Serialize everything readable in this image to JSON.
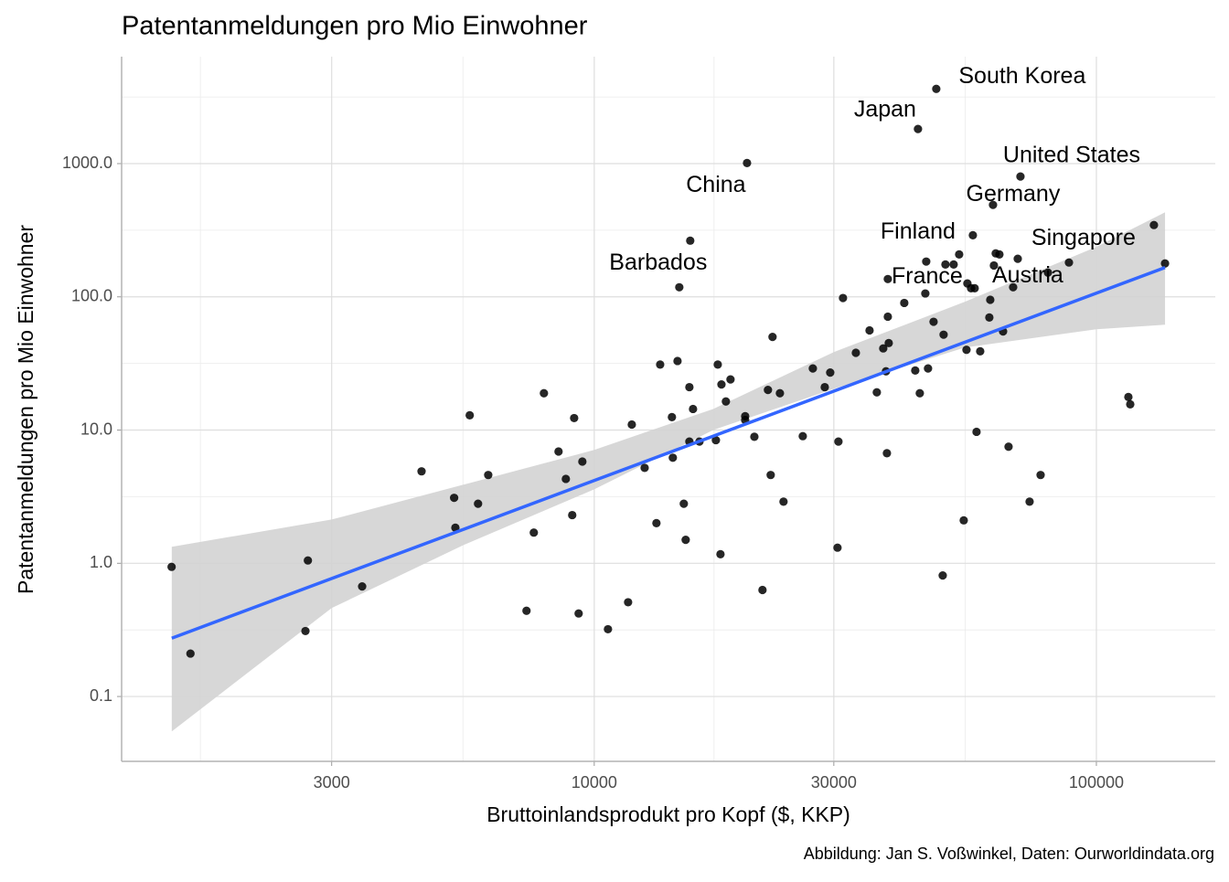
{
  "chart_data": {
    "type": "scatter",
    "title": "Patentanmeldungen pro Mio Einwohner",
    "x_label": "Bruttoinlandsprodukt pro Kopf ($, KKP)",
    "y_label": "Patentanmeldungen pro Mio Einwohner",
    "caption": "Abbildung: Jan S. Voßwinkel, Daten: Ourworldindata.org",
    "xscale": "log",
    "yscale": "log",
    "xlim": [
      1145,
      172500
    ],
    "ylim": [
      0.0326,
      6350
    ],
    "xticks": [
      3000,
      10000,
      30000,
      100000
    ],
    "yticks": [
      0.1,
      {
        "value": 1,
        "label": "1.0"
      },
      {
        "value": 10,
        "label": "10.0"
      },
      {
        "value": 100,
        "label": "100.0"
      },
      {
        "value": 1000,
        "label": "1000.0"
      }
    ],
    "grid": true,
    "color": "#000000",
    "x": [
      1440,
      1570,
      2660,
      2690,
      3450,
      4530,
      5260,
      5290,
      5650,
      5870,
      6150,
      7330,
      7580,
      7940,
      8490,
      8780,
      9040,
      9120,
      9310,
      9470,
      10650,
      11680,
      11880,
      12600,
      13300,
      13530,
      14280,
      14340,
      14650,
      14770,
      15080,
      15210,
      15470,
      15470,
      15530,
      15730,
      16200,
      17470,
      17620,
      17840,
      17920,
      18290,
      18680,
      19980,
      19980,
      20150,
      20840,
      21630,
      22180,
      22460,
      22650,
      23430,
      23820,
      26020,
      27250,
      28780,
      29510,
      30510,
      30640,
      31290,
      33190,
      35340,
      36540,
      37630,
      38110,
      38270,
      38430,
      38430,
      38590,
      41440,
      43580,
      44130,
      44500,
      45640,
      45830,
      46210,
      47400,
      47990,
      49430,
      49630,
      50050,
      51970,
      53300,
      54430,
      55120,
      55350,
      56290,
      56760,
      57230,
      57720,
      58700,
      61210,
      61470,
      62250,
      62510,
      63030,
      64100,
      65190,
      66850,
      68270,
      69730,
      70600,
      73620,
      77430,
      80080,
      88180,
      115800,
      116800,
      130200,
      137000
    ],
    "y": [
      0.94,
      0.21,
      0.31,
      1.05,
      0.67,
      4.9,
      3.1,
      1.85,
      12.9,
      2.8,
      4.6,
      0.44,
      1.7,
      18.9,
      6.9,
      4.3,
      2.3,
      12.3,
      0.42,
      5.8,
      0.32,
      0.51,
      11,
      5.2,
      2.0,
      31,
      12.5,
      6.2,
      33,
      118,
      2.8,
      1.5,
      8.2,
      21,
      264,
      14.4,
      8.2,
      8.4,
      31,
      1.17,
      22,
      16.4,
      24,
      11.9,
      12.7,
      1010,
      8.9,
      0.63,
      20,
      4.6,
      50,
      18.9,
      2.9,
      9.0,
      29,
      21,
      27,
      1.31,
      8.2,
      98,
      38,
      56,
      19.2,
      41,
      27.6,
      6.7,
      136,
      71,
      45,
      90,
      28,
      1820,
      18.9,
      106,
      184,
      29,
      65,
      3640,
      0.81,
      52,
      175,
      175,
      208,
      2.1,
      40,
      126,
      116,
      290,
      116,
      9.7,
      39,
      70,
      95,
      490,
      172,
      212,
      208,
      55,
      7.5,
      118,
      193,
      800,
      2.9,
      4.6,
      152,
      181,
      17.7,
      15.6,
      346,
      178
    ],
    "labels": [
      null,
      null,
      null,
      null,
      null,
      null,
      null,
      null,
      null,
      null,
      null,
      null,
      null,
      null,
      null,
      null,
      null,
      null,
      null,
      null,
      null,
      null,
      null,
      null,
      null,
      null,
      null,
      null,
      null,
      null,
      null,
      null,
      null,
      null,
      "Barbados",
      null,
      null,
      null,
      null,
      null,
      null,
      null,
      null,
      null,
      null,
      "China",
      null,
      null,
      null,
      null,
      null,
      null,
      null,
      null,
      null,
      null,
      null,
      null,
      null,
      null,
      null,
      null,
      null,
      null,
      null,
      null,
      null,
      null,
      null,
      null,
      null,
      "Japan",
      null,
      null,
      "France",
      null,
      null,
      "South Korea",
      null,
      null,
      null,
      null,
      null,
      null,
      null,
      null,
      null,
      "Finland",
      null,
      null,
      null,
      null,
      null,
      "Germany",
      null,
      "Austria",
      null,
      null,
      null,
      null,
      null,
      "United States",
      null,
      null,
      null,
      null,
      null,
      null,
      "Singapore",
      null
    ],
    "fit": {
      "x": [
        1441,
        137000
      ],
      "y": [
        0.274,
        166
      ],
      "color": "#3366ff"
    },
    "band": {
      "x": [
        1441,
        3000,
        5490,
        10000,
        17250,
        30000,
        54660,
        100000,
        137000
      ],
      "lower": [
        0.0547,
        0.461,
        1.37,
        3.59,
        10.0,
        20.4,
        41.6,
        57.1,
        61.8
      ],
      "upper": [
        1.33,
        2.13,
        3.89,
        7.09,
        14.4,
        38.5,
        91.7,
        237,
        431
      ],
      "color": "#d3d3d3"
    }
  }
}
